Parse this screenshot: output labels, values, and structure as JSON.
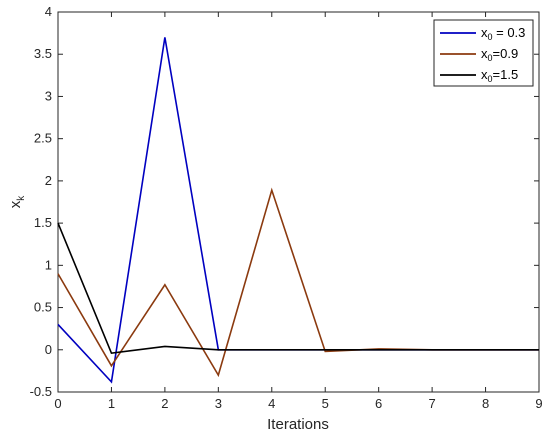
{
  "chart_data": {
    "type": "line",
    "xlabel": "Iterations",
    "ylabel_main": "x",
    "ylabel_sub": "k",
    "xlim": [
      0,
      9
    ],
    "ylim": [
      -0.5,
      4
    ],
    "x_ticks": [
      0,
      1,
      2,
      3,
      4,
      5,
      6,
      7,
      8,
      9
    ],
    "y_ticks": [
      -0.5,
      0,
      0.5,
      1,
      1.5,
      2,
      2.5,
      3,
      3.5,
      4
    ],
    "y_tick_labels": [
      "-0.5",
      "0",
      "0.5",
      "1",
      "1.5",
      "2",
      "2.5",
      "3",
      "3.5",
      "4"
    ],
    "grid": false,
    "legend_position": "top-right",
    "x": [
      0,
      1,
      2,
      3,
      4,
      5,
      6,
      7,
      8,
      9
    ],
    "series": [
      {
        "legend_main": "x",
        "legend_sub": "0",
        "legend_rest": " = 0.3",
        "color": "#0000c0",
        "values": [
          0.3,
          -0.38,
          3.7,
          0.0,
          0.0,
          0.0,
          0.0,
          0.0,
          0.0,
          0.0
        ]
      },
      {
        "legend_main": "x",
        "legend_sub": "0",
        "legend_rest": "=0.9",
        "color": "#8b3a0f",
        "values": [
          0.9,
          -0.19,
          0.77,
          -0.3,
          1.89,
          -0.02,
          0.01,
          0.0,
          0.0,
          0.0
        ]
      },
      {
        "legend_main": "x",
        "legend_sub": "0",
        "legend_rest": "=1.5",
        "color": "#000000",
        "values": [
          1.5,
          -0.04,
          0.04,
          0.0,
          0.0,
          0.0,
          0.0,
          0.0,
          0.0,
          0.0
        ]
      }
    ]
  }
}
